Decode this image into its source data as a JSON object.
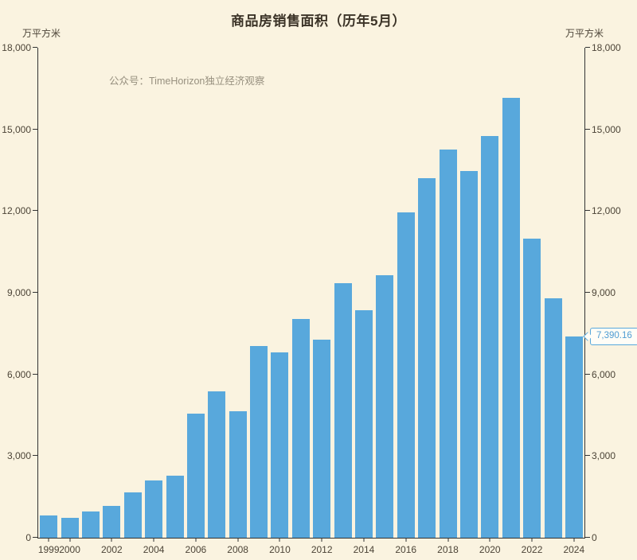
{
  "title": "商品房销售面积（历年5月）",
  "watermark": "公众号：TimeHorizon独立经济观察",
  "axis_units": {
    "left": "万平方米",
    "right": "万平方米"
  },
  "callout": {
    "label": "7,390.16"
  },
  "colors": {
    "background": "#faf3e0",
    "bar": "#58a8dc",
    "axis": "#333333",
    "tick_text": "#4c4437",
    "title_text": "#3b3327",
    "watermark_text": "#97907f",
    "callout_accent": "#58a8dc"
  },
  "chart_data": {
    "type": "bar",
    "title": "商品房销售面积（历年5月）",
    "ylabel": "万平方米",
    "xlabel": "",
    "ylim": [
      0,
      18000
    ],
    "grid": false,
    "legend": false,
    "y_ticks": [
      0,
      3000,
      6000,
      9000,
      12000,
      15000,
      18000
    ],
    "categories": [
      1999,
      2000,
      2001,
      2002,
      2003,
      2004,
      2005,
      2006,
      2007,
      2008,
      2009,
      2010,
      2011,
      2012,
      2013,
      2014,
      2015,
      2016,
      2017,
      2018,
      2019,
      2020,
      2021,
      2022,
      2023,
      2024
    ],
    "values": [
      810,
      745,
      960,
      1160,
      1655,
      2105,
      2270,
      4560,
      5385,
      4640,
      7040,
      6800,
      8035,
      7285,
      9360,
      8355,
      9645,
      11960,
      13200,
      14270,
      13470,
      14760,
      16160,
      10990,
      8795,
      7390.16
    ],
    "x_tick_labels": [
      1999,
      2000,
      2002,
      2004,
      2006,
      2008,
      2010,
      2012,
      2014,
      2016,
      2018,
      2020,
      2022,
      2024
    ],
    "annotation": {
      "category": 2024,
      "label": "7,390.16"
    }
  }
}
